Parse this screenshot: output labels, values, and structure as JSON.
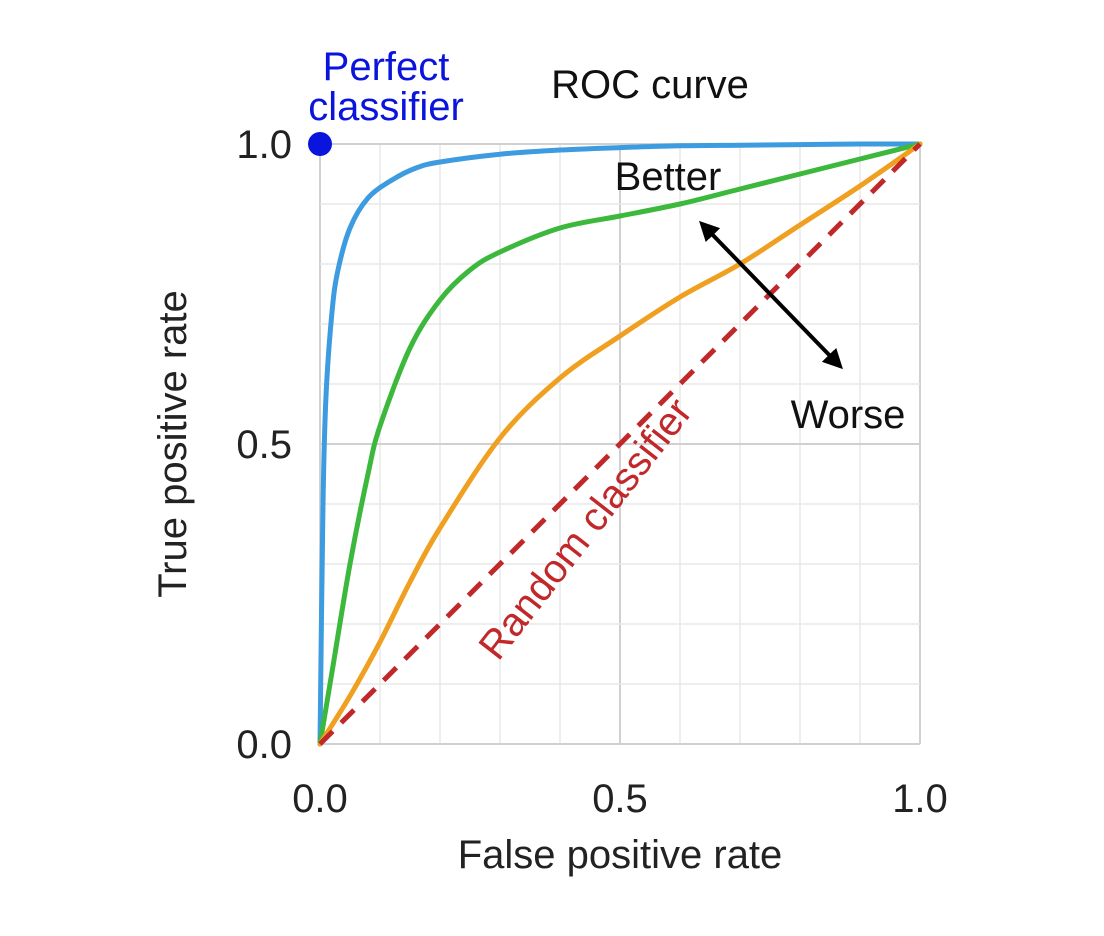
{
  "chart_data": {
    "type": "line",
    "title": "ROC curve",
    "xlabel": "False positive rate",
    "ylabel": "True positive rate",
    "xlim": [
      0,
      1
    ],
    "ylim": [
      0,
      1
    ],
    "grid": true,
    "x_ticks": [
      "0.0",
      "0.5",
      "1.0"
    ],
    "y_ticks": [
      "0.0",
      "0.5",
      "1.0"
    ],
    "x_tick_values": [
      0,
      0.5,
      1
    ],
    "y_tick_values": [
      0,
      0.5,
      1
    ],
    "minor_grid_step": 0.1,
    "series": [
      {
        "color": "#3d9be0",
        "x": [
          0,
          0.005,
          0.01,
          0.02,
          0.03,
          0.05,
          0.08,
          0.12,
          0.16,
          0.2,
          0.3,
          0.4,
          0.5,
          0.6,
          0.7,
          0.8,
          0.9,
          1.0
        ],
        "y": [
          0,
          0.4,
          0.58,
          0.72,
          0.79,
          0.86,
          0.91,
          0.94,
          0.96,
          0.97,
          0.983,
          0.99,
          0.994,
          0.997,
          0.998,
          0.999,
          1.0,
          1.0
        ]
      },
      {
        "color": "#3cb83c",
        "x": [
          0,
          0.02,
          0.05,
          0.08,
          0.1,
          0.15,
          0.2,
          0.25,
          0.3,
          0.4,
          0.5,
          0.6,
          0.7,
          0.8,
          0.9,
          1.0
        ],
        "y": [
          0,
          0.12,
          0.3,
          0.45,
          0.53,
          0.66,
          0.74,
          0.79,
          0.82,
          0.86,
          0.88,
          0.9,
          0.925,
          0.95,
          0.975,
          1.0
        ]
      },
      {
        "color": "#f0a020",
        "x": [
          0,
          0.05,
          0.1,
          0.15,
          0.2,
          0.3,
          0.4,
          0.5,
          0.6,
          0.7,
          0.8,
          0.9,
          1.0
        ],
        "y": [
          0,
          0.08,
          0.17,
          0.27,
          0.36,
          0.51,
          0.61,
          0.68,
          0.745,
          0.8,
          0.865,
          0.93,
          1.0
        ]
      },
      {
        "name": "Random classifier",
        "color": "#c0282a",
        "dashed": true,
        "x": [
          0,
          1
        ],
        "y": [
          0,
          1
        ]
      }
    ],
    "points": [
      {
        "name": "Perfect classifier",
        "color": "#0a14dc",
        "x": 0,
        "y": 1
      }
    ],
    "annotations": {
      "perfect_line1": "Perfect",
      "perfect_line2": "classifier",
      "better": "Better",
      "worse": "Worse",
      "random": "Random classifier"
    },
    "colors": {
      "perfect": "#0a14dc",
      "random": "#c0282a",
      "arrow": "#000000",
      "grid_major": "#d0d0d0",
      "grid_minor": "#e8e8e8"
    }
  }
}
